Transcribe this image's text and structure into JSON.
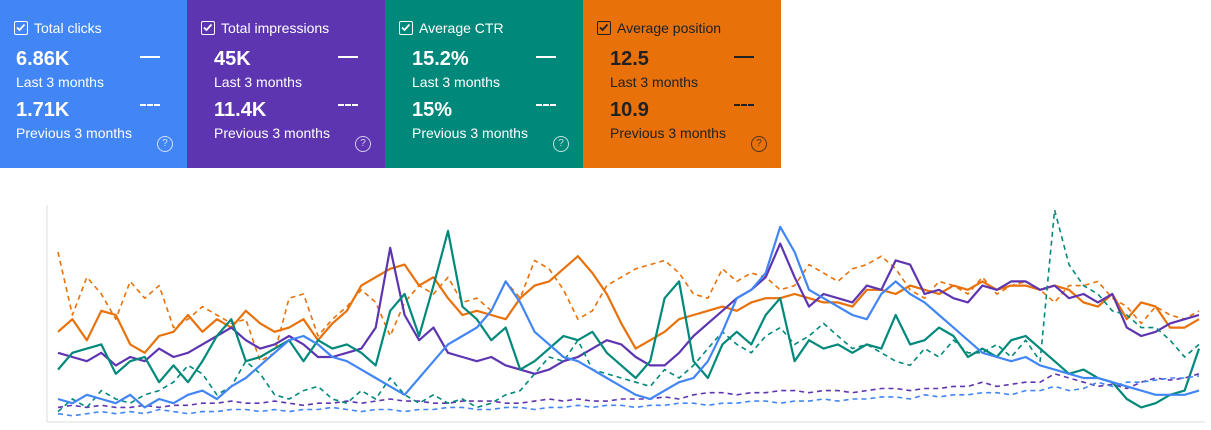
{
  "cards": [
    {
      "title": "Total clicks",
      "value_current": "6.86K",
      "label_current": "Last 3 months",
      "value_previous": "1.71K",
      "label_previous": "Previous 3 months",
      "color": "#4285f4",
      "checked": true
    },
    {
      "title": "Total impressions",
      "value_current": "45K",
      "label_current": "Last 3 months",
      "value_previous": "11.4K",
      "label_previous": "Previous 3 months",
      "color": "#5e35b1",
      "checked": true
    },
    {
      "title": "Average CTR",
      "value_current": "15.2%",
      "label_current": "Last 3 months",
      "value_previous": "15%",
      "label_previous": "Previous 3 months",
      "color": "#00897b",
      "checked": true
    },
    {
      "title": "Average position",
      "value_current": "12.5",
      "label_current": "Last 3 months",
      "value_previous": "10.9",
      "label_previous": "Previous 3 months",
      "color": "#e8710a",
      "checked": true
    }
  ],
  "help_glyph": "?",
  "chart_data": {
    "type": "line",
    "series": [
      {
        "color": "#e8710a",
        "dashed": false,
        "values": [
          42,
          48,
          38,
          52,
          50,
          36,
          32,
          40,
          42,
          50,
          42,
          48,
          44,
          52,
          46,
          42,
          44,
          48,
          38,
          46,
          52,
          64,
          68,
          72,
          74,
          64,
          68,
          58,
          50,
          52,
          50,
          48,
          58,
          64,
          66,
          72,
          78,
          70,
          60,
          46,
          34,
          38,
          42,
          48,
          50,
          52,
          54,
          52,
          56,
          58,
          58,
          60,
          58,
          56,
          56,
          54,
          62,
          62,
          60,
          64,
          62,
          60,
          64,
          62,
          66,
          62,
          64,
          64,
          62,
          64,
          62,
          56,
          54,
          60,
          48,
          56,
          54,
          44,
          44,
          48
        ]
      },
      {
        "color": "#e8710a",
        "dashed": true,
        "values": [
          80,
          50,
          68,
          60,
          48,
          66,
          58,
          64,
          44,
          48,
          54,
          50,
          46,
          48,
          28,
          32,
          58,
          60,
          40,
          48,
          54,
          62,
          56,
          40,
          56,
          64,
          60,
          68,
          56,
          58,
          52,
          66,
          58,
          76,
          72,
          62,
          48,
          52,
          64,
          68,
          72,
          74,
          76,
          70,
          60,
          58,
          72,
          66,
          70,
          68,
          62,
          64,
          74,
          70,
          66,
          72,
          74,
          78,
          72,
          62,
          58,
          66,
          64,
          60,
          68,
          60,
          64,
          66,
          62,
          56,
          64,
          64,
          66,
          58,
          54,
          46,
          54,
          50,
          48,
          52
        ]
      },
      {
        "color": "#5e35b1",
        "dashed": false,
        "values": [
          32,
          30,
          28,
          32,
          26,
          30,
          28,
          34,
          30,
          32,
          36,
          40,
          44,
          38,
          34,
          36,
          40,
          36,
          30,
          30,
          32,
          34,
          44,
          82,
          50,
          38,
          44,
          32,
          30,
          28,
          30,
          26,
          24,
          22,
          24,
          28,
          30,
          34,
          38,
          36,
          30,
          26,
          26,
          32,
          40,
          46,
          52,
          58,
          62,
          68,
          84,
          68,
          54,
          60,
          58,
          56,
          64,
          62,
          76,
          74,
          60,
          62,
          58,
          56,
          64,
          62,
          66,
          66,
          62,
          64,
          58,
          60,
          56,
          60,
          44,
          40,
          42,
          46,
          48,
          50
        ]
      },
      {
        "color": "#5e35b1",
        "dashed": true,
        "values": [
          6,
          7,
          6,
          7,
          6,
          6,
          7,
          6,
          7,
          7,
          8,
          8,
          9,
          8,
          8,
          9,
          8,
          7,
          8,
          8,
          9,
          8,
          9,
          10,
          9,
          9,
          8,
          8,
          9,
          9,
          9,
          8,
          8,
          9,
          10,
          9,
          10,
          9,
          9,
          10,
          10,
          10,
          11,
          10,
          12,
          13,
          13,
          12,
          13,
          13,
          14,
          14,
          13,
          14,
          14,
          13,
          14,
          15,
          15,
          14,
          15,
          15,
          16,
          16,
          18,
          16,
          17,
          18,
          18,
          22,
          20,
          18,
          16,
          17,
          15,
          18,
          20,
          19,
          20,
          22
        ]
      },
      {
        "color": "#00897b",
        "dashed": false,
        "values": [
          24,
          32,
          34,
          36,
          22,
          28,
          30,
          18,
          26,
          18,
          28,
          40,
          48,
          28,
          30,
          34,
          38,
          28,
          38,
          34,
          36,
          32,
          26,
          52,
          60,
          40,
          64,
          90,
          54,
          48,
          38,
          44,
          24,
          28,
          34,
          40,
          38,
          42,
          32,
          26,
          20,
          28,
          58,
          66,
          28,
          20,
          36,
          42,
          36,
          50,
          58,
          28,
          38,
          34,
          36,
          32,
          36,
          34,
          50,
          36,
          38,
          44,
          40,
          30,
          34,
          30,
          38,
          40,
          34,
          28,
          22,
          24,
          20,
          18,
          10,
          6,
          8,
          12,
          14,
          34
        ]
      },
      {
        "color": "#00897b",
        "dashed": true,
        "values": [
          4,
          10,
          6,
          14,
          10,
          8,
          12,
          14,
          18,
          26,
          22,
          12,
          16,
          28,
          22,
          12,
          10,
          14,
          16,
          10,
          8,
          14,
          10,
          20,
          12,
          8,
          12,
          8,
          10,
          6,
          8,
          12,
          14,
          22,
          30,
          28,
          38,
          24,
          22,
          20,
          18,
          16,
          24,
          20,
          26,
          34,
          42,
          36,
          32,
          40,
          44,
          36,
          40,
          46,
          40,
          34,
          36,
          32,
          28,
          26,
          34,
          30,
          38,
          32,
          32,
          36,
          30,
          38,
          28,
          100,
          74,
          64,
          60,
          52,
          50,
          44,
          44,
          38,
          30,
          36
        ]
      },
      {
        "color": "#4285f4",
        "dashed": false,
        "values": [
          10,
          8,
          12,
          10,
          8,
          12,
          6,
          10,
          8,
          12,
          14,
          10,
          16,
          20,
          26,
          32,
          38,
          40,
          36,
          30,
          28,
          24,
          20,
          16,
          12,
          20,
          28,
          36,
          40,
          44,
          52,
          66,
          56,
          42,
          36,
          30,
          28,
          24,
          20,
          16,
          12,
          10,
          14,
          18,
          20,
          28,
          42,
          58,
          62,
          70,
          92,
          80,
          62,
          58,
          54,
          50,
          48,
          60,
          66,
          60,
          56,
          50,
          44,
          38,
          32,
          30,
          28,
          30,
          26,
          24,
          22,
          20,
          20,
          18,
          16,
          14,
          12,
          12,
          12,
          14
        ]
      },
      {
        "color": "#4285f4",
        "dashed": true,
        "values": [
          3,
          2,
          3,
          4,
          3,
          4,
          3,
          5,
          4,
          3,
          4,
          4,
          5,
          5,
          4,
          5,
          4,
          5,
          5,
          6,
          5,
          4,
          5,
          5,
          4,
          5,
          5,
          6,
          6,
          5,
          5,
          6,
          6,
          5,
          6,
          6,
          7,
          6,
          7,
          7,
          6,
          7,
          7,
          8,
          8,
          7,
          8,
          8,
          9,
          9,
          8,
          9,
          9,
          10,
          9,
          10,
          10,
          11,
          11,
          10,
          12,
          11,
          12,
          12,
          13,
          13,
          12,
          14,
          14,
          16,
          14,
          15,
          18,
          16,
          18,
          18,
          19,
          20,
          20,
          21
        ]
      }
    ]
  }
}
